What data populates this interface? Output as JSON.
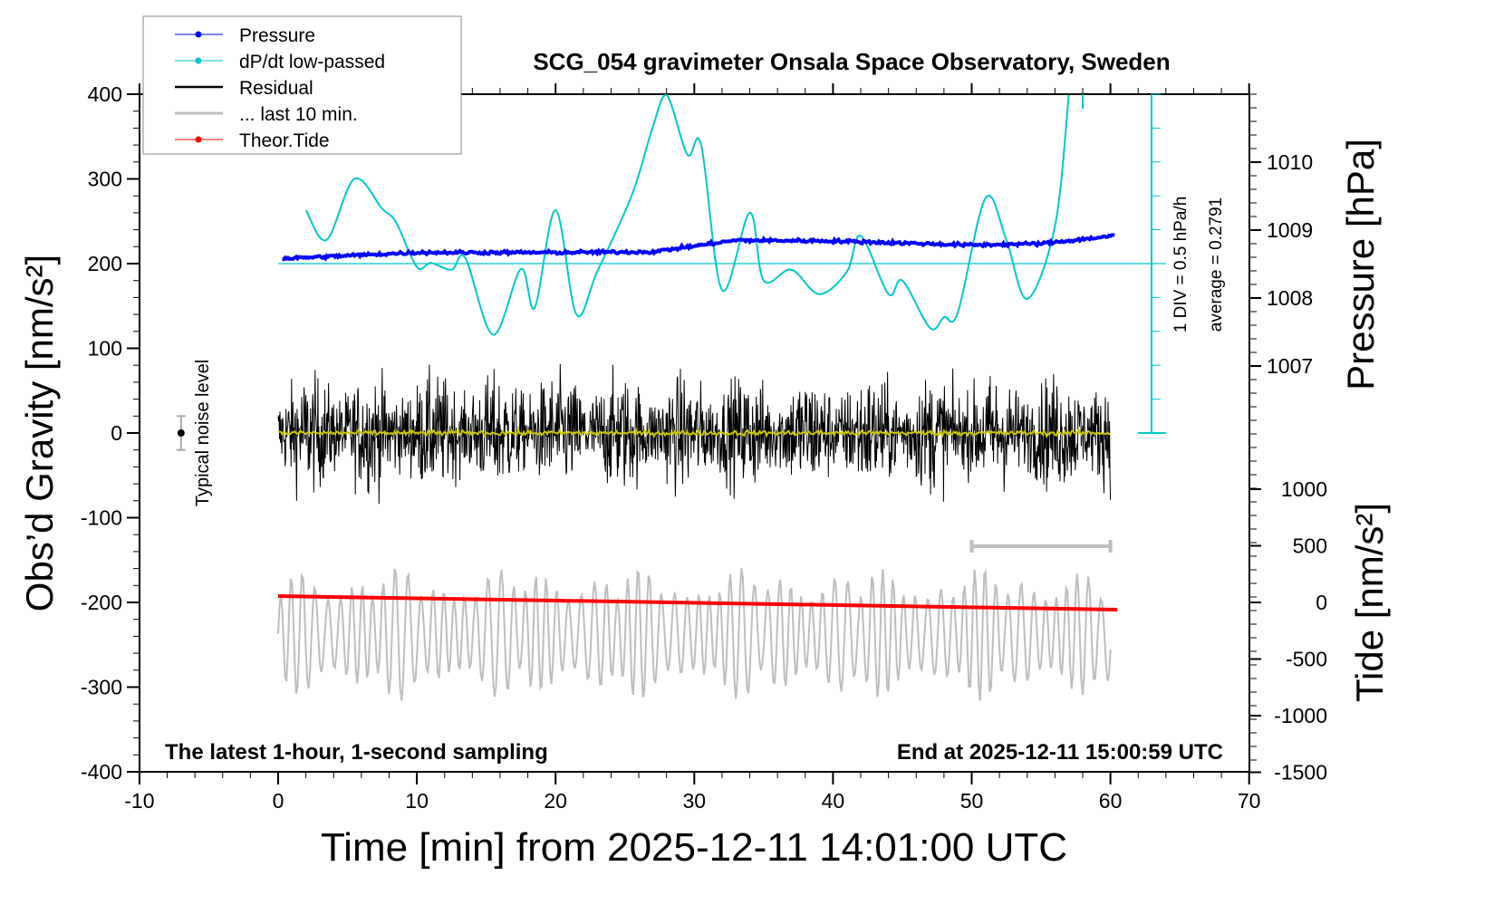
{
  "chart_data": {
    "type": "line",
    "title": "SCG_054 gravimeter Onsala Space Observatory, Sweden",
    "xlabel": "Time [min] from 2025-12-11 14:01:00 UTC",
    "ylabel": "Obs’d Gravity [nm/s²]",
    "y2label": "Pressure [hPa]",
    "y3label": "Tide [nm/s²]",
    "xlim": [
      -10,
      70
    ],
    "ylim": [
      -400,
      400
    ],
    "xticks": [
      "-10",
      "0",
      "10",
      "20",
      "30",
      "40",
      "50",
      "60",
      "70"
    ],
    "yticks": [
      "400",
      "300",
      "200",
      "100",
      "0",
      "-100",
      "-200",
      "-300",
      "-400"
    ],
    "pressure_ticks": [
      "1010",
      "1009",
      "1008",
      "1007"
    ],
    "tide_ticks": [
      "1000",
      "500",
      "0",
      "-500",
      "-1000",
      "-1500"
    ],
    "legend": {
      "placement": "top-left",
      "entries": [
        "Pressure",
        "dP/dt low-passed",
        "Residual",
        "... last 10 min.",
        "Theor.Tide"
      ]
    },
    "colors": {
      "pressure": "#0000ff",
      "dpdt": "#00c8c8",
      "residual": "#000000",
      "last10": "#bebebe",
      "tide": "#ff0000",
      "residual_lowpass": "#c8c800"
    },
    "annotations": {
      "left_bottom": "The latest 1-hour, 1-second sampling",
      "right_bottom": "End at 2025-12-11 15:00:59 UTC",
      "noise": "Typical noise level",
      "div": "1 DIV = 0.5 hPa/h",
      "average": "average = 0.2791"
    },
    "pressure_hPa": {
      "x": [
        0.3,
        10,
        20,
        27,
        33,
        40,
        50,
        55,
        60.5
      ],
      "values": [
        1008.58,
        1008.67,
        1008.67,
        1008.68,
        1008.85,
        1008.84,
        1008.78,
        1008.8,
        1008.92
      ]
    },
    "dpdt_hPa_per_h": {
      "x": [
        2,
        3.5,
        5.5,
        7.5,
        8.5,
        10,
        11,
        12.5,
        13.5,
        15.5,
        17.5,
        18.5,
        20,
        21.5,
        23,
        25.5,
        27,
        28,
        29.5,
        30.5,
        32,
        34,
        35,
        37,
        39,
        41,
        42,
        44,
        45,
        47,
        48,
        49,
        51,
        52.5,
        54,
        56,
        57
      ],
      "values": [
        0.79,
        0.35,
        1.25,
        0.81,
        0.61,
        -0.05,
        0.01,
        -0.09,
        0.08,
        -1.05,
        -0.08,
        -0.65,
        0.79,
        -0.75,
        -0.12,
        1.01,
        2.01,
        2.49,
        1.61,
        1.75,
        -0.39,
        0.75,
        -0.25,
        -0.09,
        -0.45,
        -0.12,
        0.41,
        -0.45,
        -0.25,
        -0.95,
        -0.79,
        -0.72,
        0.97,
        0.35,
        -0.52,
        0.55,
        2.49
      ]
    },
    "tide_nm_s2": {
      "x": [
        0,
        60.5
      ],
      "values": [
        56,
        -64
      ]
    },
    "noise_level": {
      "x": -7,
      "y": 0,
      "error": 20
    },
    "last10_bar": {
      "x": [
        50,
        60
      ]
    }
  }
}
